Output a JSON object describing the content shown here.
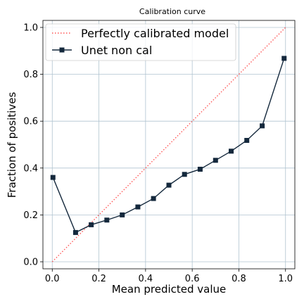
{
  "chart_data": {
    "type": "line",
    "title": "Calibration curve",
    "xlabel": "Mean predicted value",
    "ylabel": "Fraction of positives",
    "xlim": [
      -0.04,
      1.04
    ],
    "ylim": [
      -0.03,
      1.03
    ],
    "xticks": [
      0.0,
      0.2,
      0.4,
      0.6,
      0.8,
      1.0
    ],
    "xtick_labels": [
      "0.0",
      "0.2",
      "0.4",
      "0.6",
      "0.8",
      "1.0"
    ],
    "yticks": [
      0.0,
      0.2,
      0.4,
      0.6,
      0.8,
      1.0
    ],
    "ytick_labels": [
      "0.0",
      "0.2",
      "0.4",
      "0.6",
      "0.8",
      "1.0"
    ],
    "grid": true,
    "legend_position": "top-left",
    "series": [
      {
        "name": "Perfectly calibrated model",
        "style": "dotted",
        "color": "#ff5555",
        "x": [
          0.0,
          1.0
        ],
        "y": [
          0.0,
          1.0
        ]
      },
      {
        "name": "Unet non cal",
        "style": "solid-square-markers",
        "color": "#14283c",
        "x": [
          0.003,
          0.1,
          0.167,
          0.234,
          0.3,
          0.367,
          0.434,
          0.5,
          0.567,
          0.634,
          0.7,
          0.767,
          0.834,
          0.9,
          0.994
        ],
        "y": [
          0.36,
          0.125,
          0.158,
          0.178,
          0.2,
          0.234,
          0.27,
          0.327,
          0.373,
          0.395,
          0.433,
          0.472,
          0.518,
          0.58,
          0.868
        ]
      }
    ]
  }
}
